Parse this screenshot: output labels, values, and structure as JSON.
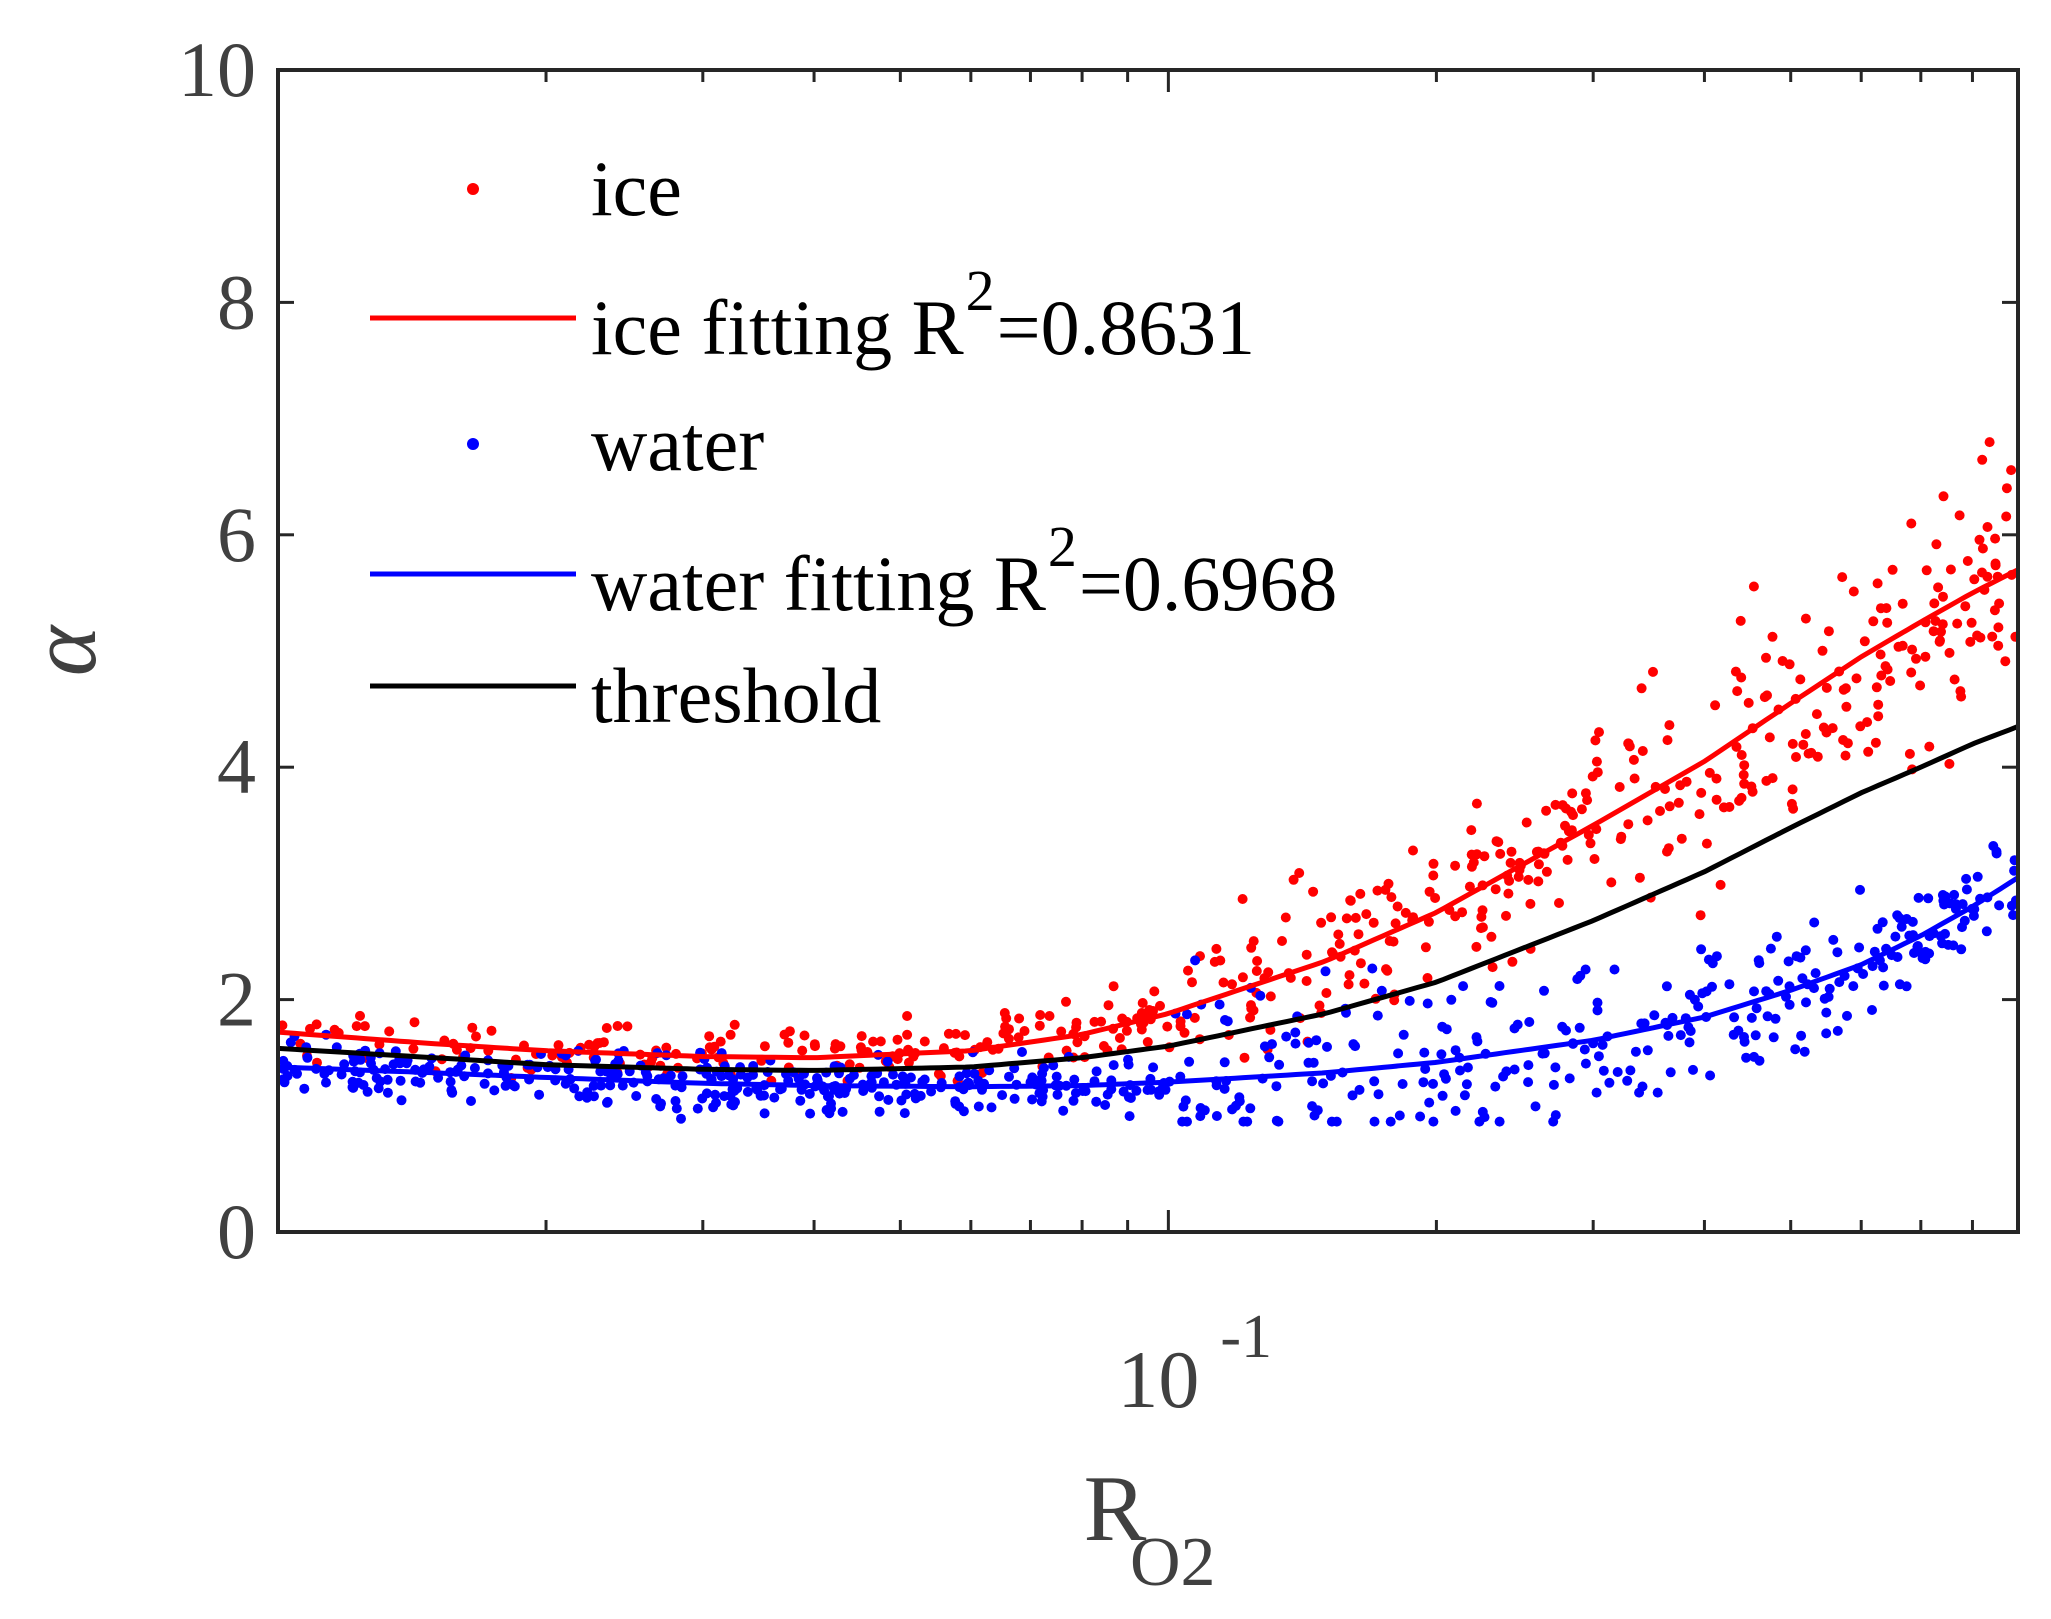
{
  "chart_data": {
    "type": "scatter",
    "title": "",
    "xlabel": "R",
    "xlabel_sub": "O2",
    "ylabel": "α",
    "xscale": "log",
    "xlim": [
      0.01,
      0.9
    ],
    "ylim": [
      0,
      10
    ],
    "x_tick_label": {
      "base": "10",
      "exponent": "-1",
      "value": 0.1
    },
    "y_ticks": [
      0,
      2,
      4,
      6,
      8,
      10
    ],
    "y_tick_labels": [
      "0",
      "2",
      "4",
      "6",
      "8",
      "10"
    ],
    "x_minor_ticks": [
      0.02,
      0.03,
      0.04,
      0.05,
      0.06,
      0.07,
      0.08,
      0.09,
      0.2,
      0.3,
      0.4,
      0.5,
      0.6,
      0.7,
      0.8,
      0.9
    ],
    "grid": false,
    "legend_position": "top-left",
    "series": [
      {
        "name": "ice",
        "kind": "points",
        "color": "#ff0000",
        "note": "scattered measurements follow the ice fitting curve (noise grows with R_O2)",
        "curve_x": [
          0.01,
          0.015,
          0.02,
          0.03,
          0.04,
          0.06,
          0.08,
          0.1,
          0.15,
          0.2,
          0.3,
          0.4,
          0.5,
          0.6,
          0.7,
          0.8,
          0.9
        ],
        "curve_y": [
          1.72,
          1.62,
          1.56,
          1.51,
          1.5,
          1.56,
          1.7,
          1.88,
          2.33,
          2.75,
          3.5,
          4.05,
          4.55,
          4.95,
          5.25,
          5.5,
          5.7
        ],
        "ranges": [
          {
            "x": [
              0.01,
              0.03
            ],
            "y_min": 1.3,
            "y_max": 2.15
          },
          {
            "x": [
              0.03,
              0.1
            ],
            "y_min": 1.3,
            "y_max": 2.3
          },
          {
            "x": [
              0.1,
              0.3
            ],
            "y_min": 1.5,
            "y_max": 4.2
          },
          {
            "x": [
              0.3,
              0.6
            ],
            "y_min": 2.3,
            "y_max": 6.25
          },
          {
            "x": [
              0.6,
              0.9
            ],
            "y_min": 3.15,
            "y_max": 7.2
          }
        ],
        "count": 520
      },
      {
        "name": "ice fitting R",
        "label_exponent": "2",
        "label_value": "=0.8631",
        "kind": "line",
        "color": "#ff0000",
        "x": [
          0.01,
          0.015,
          0.02,
          0.03,
          0.04,
          0.06,
          0.08,
          0.1,
          0.15,
          0.2,
          0.3,
          0.4,
          0.5,
          0.6,
          0.7,
          0.8,
          0.9
        ],
        "y": [
          1.72,
          1.62,
          1.56,
          1.51,
          1.5,
          1.56,
          1.7,
          1.88,
          2.33,
          2.75,
          3.5,
          4.05,
          4.55,
          4.95,
          5.25,
          5.5,
          5.7
        ]
      },
      {
        "name": "water",
        "kind": "points",
        "color": "#0000ff",
        "note": "scattered measurements follow the water fitting curve",
        "curve_x": [
          0.01,
          0.015,
          0.02,
          0.03,
          0.04,
          0.06,
          0.08,
          0.1,
          0.15,
          0.2,
          0.3,
          0.4,
          0.5,
          0.6,
          0.7,
          0.8,
          0.9
        ],
        "curve_y": [
          1.42,
          1.37,
          1.33,
          1.28,
          1.26,
          1.25,
          1.26,
          1.29,
          1.37,
          1.46,
          1.65,
          1.85,
          2.08,
          2.3,
          2.55,
          2.8,
          3.05
        ],
        "ranges": [
          {
            "x": [
              0.01,
              0.1
            ],
            "y_min": 0.9,
            "y_max": 1.8
          },
          {
            "x": [
              0.1,
              0.3
            ],
            "y_min": 0.95,
            "y_max": 4.15
          },
          {
            "x": [
              0.3,
              0.6
            ],
            "y_min": 1.2,
            "y_max": 3.75
          },
          {
            "x": [
              0.6,
              0.9
            ],
            "y_min": 1.9,
            "y_max": 3.55
          }
        ],
        "count": 640
      },
      {
        "name": "water fitting R",
        "label_exponent": "2",
        "label_value": "=0.6968",
        "kind": "line",
        "color": "#0000ff",
        "x": [
          0.01,
          0.015,
          0.02,
          0.03,
          0.04,
          0.06,
          0.08,
          0.1,
          0.15,
          0.2,
          0.3,
          0.4,
          0.5,
          0.6,
          0.7,
          0.8,
          0.9
        ],
        "y": [
          1.42,
          1.37,
          1.33,
          1.28,
          1.26,
          1.25,
          1.26,
          1.29,
          1.37,
          1.46,
          1.65,
          1.85,
          2.08,
          2.3,
          2.55,
          2.8,
          3.05
        ]
      },
      {
        "name": "threshold",
        "kind": "line",
        "color": "#000000",
        "x": [
          0.01,
          0.015,
          0.02,
          0.03,
          0.04,
          0.06,
          0.08,
          0.1,
          0.15,
          0.2,
          0.3,
          0.4,
          0.5,
          0.6,
          0.7,
          0.8,
          0.9
        ],
        "y": [
          1.58,
          1.5,
          1.44,
          1.4,
          1.39,
          1.42,
          1.5,
          1.6,
          1.88,
          2.15,
          2.68,
          3.1,
          3.48,
          3.78,
          4.0,
          4.2,
          4.35
        ]
      }
    ]
  }
}
